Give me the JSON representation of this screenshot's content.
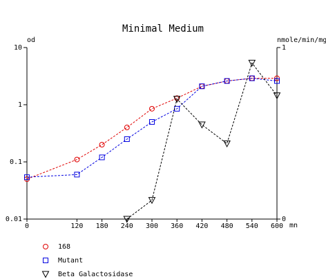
{
  "chart_data": {
    "type": "line",
    "title": "Minimal Medium",
    "ylabel": "od",
    "y2label": "nmole/min/mg",
    "xlabel": "mn",
    "x": [
      0,
      120,
      180,
      240,
      300,
      360,
      420,
      480,
      540,
      600
    ],
    "xlim": [
      0,
      600
    ],
    "xticks": [
      0,
      120,
      180,
      240,
      300,
      360,
      420,
      480,
      540,
      600
    ],
    "ylim": [
      0.01,
      10
    ],
    "yticks": [
      0.01,
      0.1,
      1,
      10
    ],
    "ylog": true,
    "y2lim": [
      0,
      1
    ],
    "y2ticks": [
      0,
      1
    ],
    "grid": false,
    "legend": "bottom-left",
    "series": [
      {
        "name": "168",
        "color": "#e00000",
        "marker": "circle",
        "axis": "y",
        "values": [
          0.05,
          0.11,
          0.2,
          0.4,
          0.85,
          1.3,
          2.1,
          2.6,
          2.9,
          2.9
        ]
      },
      {
        "name": "Mutant",
        "color": "#0000e0",
        "marker": "square",
        "axis": "y",
        "values": [
          0.054,
          0.06,
          0.12,
          0.25,
          0.5,
          0.85,
          2.1,
          2.6,
          2.9,
          2.6
        ]
      },
      {
        "name": "Beta Galactosidase",
        "color": "#000000",
        "marker": "triangle-down",
        "axis": "y2",
        "values": [
          null,
          null,
          null,
          0,
          0.11,
          0.7,
          0.55,
          0.44,
          0.91,
          0.72
        ]
      }
    ]
  }
}
